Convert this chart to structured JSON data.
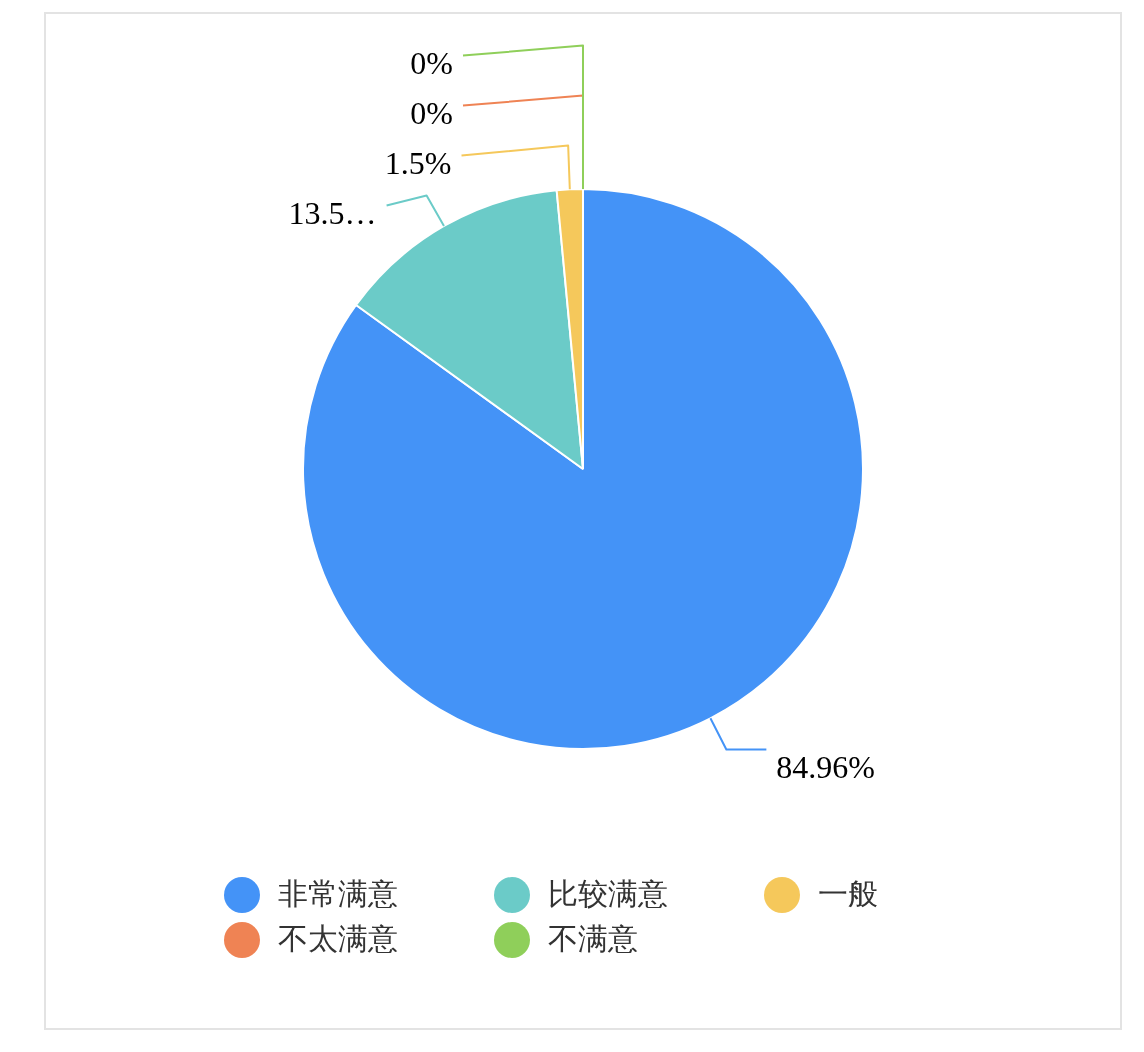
{
  "chart_data": {
    "type": "pie",
    "categories": [
      "非常满意",
      "比较满意",
      "一般",
      "不太满意",
      "不满意"
    ],
    "values": [
      84.96,
      13.54,
      1.5,
      0,
      0
    ],
    "colors": [
      "#4493f7",
      "#6bcbc8",
      "#f5c85b",
      "#ef8354",
      "#8fcf5a"
    ],
    "value_labels": [
      "84.96%",
      "13.5…",
      "1.5%",
      "0%",
      "0%"
    ],
    "legend": "bottom"
  }
}
